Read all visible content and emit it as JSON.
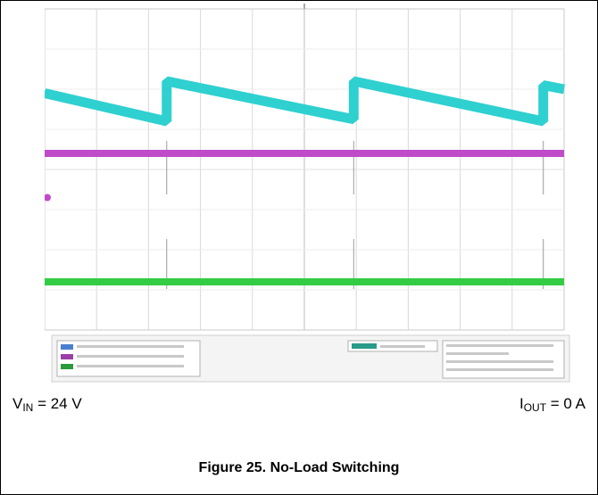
{
  "chart_data": {
    "type": "line",
    "title": "",
    "xlabel": "",
    "ylabel": "",
    "colors": {
      "ch1": "#2fd0d0",
      "ch2": "#c04bc8",
      "ch3": "#33cc44",
      "grid": "#d8d8d8"
    },
    "grid": true,
    "series": [
      {
        "channel": "ch1",
        "shape": "sawtooth",
        "x": [
          0,
          2.35,
          2.35,
          5.95,
          5.95,
          9.6,
          9.6,
          10
        ],
        "y": [
          5.9,
          5.2,
          6.2,
          5.25,
          6.2,
          5.2,
          6.1,
          6.0
        ]
      },
      {
        "channel": "ch2",
        "shape": "flat",
        "x": [
          0,
          10
        ],
        "y": [
          4.4,
          4.4
        ]
      },
      {
        "channel": "ch3",
        "shape": "flat",
        "x": [
          0,
          10
        ],
        "y": [
          1.2,
          1.2
        ]
      }
    ],
    "xlim": [
      0,
      10
    ],
    "ylim": [
      0,
      8
    ]
  },
  "conditions": {
    "vin_main": "V",
    "vin_sub": "IN",
    "vin_value": " = 24 V",
    "iout_main": "I",
    "iout_sub": "OUT",
    "iout_value": " = 0 A"
  },
  "caption": "Figure 25. No-Load Switching"
}
